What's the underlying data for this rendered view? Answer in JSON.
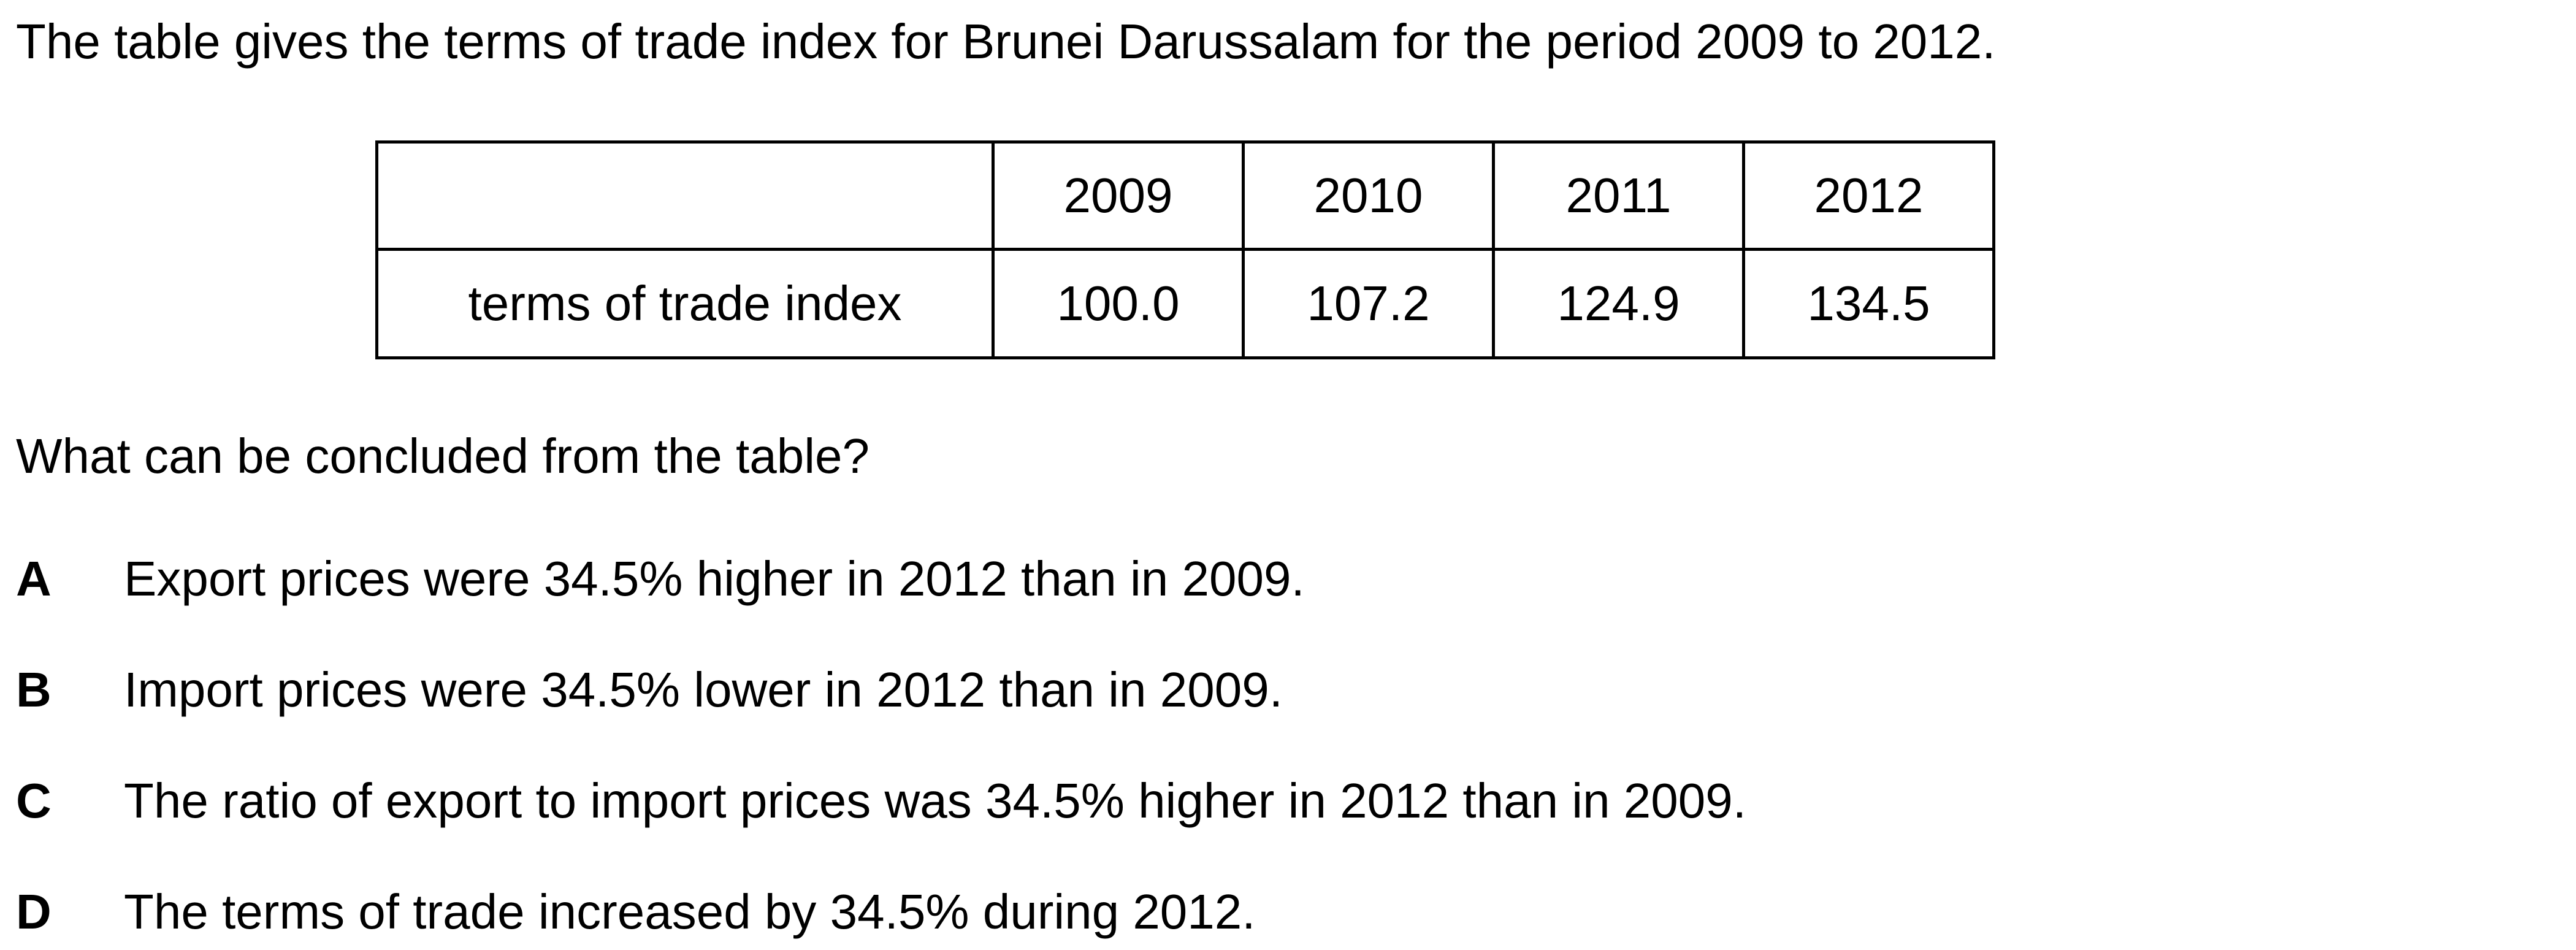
{
  "intro": "The table gives the terms of trade index for Brunei Darussalam for the period 2009 to 2012.",
  "table": {
    "header_corner": "",
    "years": [
      "2009",
      "2010",
      "2011",
      "2012"
    ],
    "row_label": "terms of trade index",
    "values": [
      "100.0",
      "107.2",
      "124.9",
      "134.5"
    ]
  },
  "question": "What can be concluded from the table?",
  "options": [
    {
      "letter": "A",
      "text": "Export prices were 34.5% higher in 2012 than in 2009."
    },
    {
      "letter": "B",
      "text": "Import prices were 34.5% lower in 2012 than in 2009."
    },
    {
      "letter": "C",
      "text": "The ratio of export to import prices was 34.5% higher in 2012 than in 2009."
    },
    {
      "letter": "D",
      "text": "The terms of trade increased by 34.5% during 2012."
    }
  ]
}
